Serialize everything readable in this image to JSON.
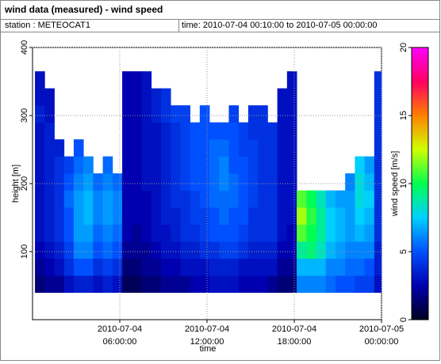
{
  "chart_data": {
    "type": "heatmap",
    "title": "wind data (measured) - wind speed",
    "station": "station : METEOCAT1",
    "time_range": "time: 2010-07-04 00:10:00 to 2010-07-05 00:00:00",
    "xlabel": "time",
    "ylabel": "height [m]",
    "colorbar_label": "wind speed [m/s]",
    "xlim": [
      0,
      24
    ],
    "xticks": [
      {
        "value": 6,
        "label": "2010-07-04 06:00:00"
      },
      {
        "value": 12,
        "label": "2010-07-04 12:00:00"
      },
      {
        "value": 18,
        "label": "2010-07-04 18:00:00"
      },
      {
        "value": 24,
        "label": "2010-07-05 00:00:00"
      }
    ],
    "ylim": [
      0,
      400
    ],
    "yticks": [
      100,
      200,
      300,
      400
    ],
    "clim": [
      0,
      20
    ],
    "cticks": [
      0,
      5,
      10,
      15,
      20
    ],
    "colorscale": [
      "#000020",
      "#0000b0",
      "#0050ff",
      "#00d0ff",
      "#00ff50",
      "#d0ff00",
      "#ff8000",
      "#ff0060",
      "#ff00ff"
    ],
    "grid": true,
    "xbins": [
      0.1667,
      0.8333,
      1.5,
      2.1667,
      2.8333,
      3.5,
      4.1667,
      4.8333,
      5.5,
      6.1667,
      6.8333,
      7.5,
      8.1667,
      8.8333,
      9.5,
      10.1667,
      10.8333,
      11.5,
      12.1667,
      12.8333,
      13.5,
      14.1667,
      14.8333,
      15.5,
      16.1667,
      16.8333,
      17.5,
      18.1667,
      18.8333,
      19.5,
      20.1667,
      20.8333,
      21.5,
      22.1667,
      22.8333,
      23.5,
      24
    ],
    "ybins": [
      40,
      65,
      90,
      115,
      140,
      165,
      190,
      215,
      240,
      265,
      290,
      315,
      340,
      365
    ],
    "z": [
      [
        1.5,
        2,
        2.5,
        3,
        3,
        3,
        3,
        3,
        3,
        3,
        3.5,
        3,
        3
      ],
      [
        2,
        2.5,
        3,
        3.5,
        3.5,
        3.5,
        3.5,
        3.5,
        3.5,
        3.5,
        3,
        3,
        null
      ],
      [
        2,
        3,
        3.5,
        4,
        4,
        4,
        4,
        4,
        3.5,
        null,
        null,
        null,
        null
      ],
      [
        3,
        4,
        4.5,
        5,
        5,
        5.5,
        5,
        4.5,
        null,
        null,
        null,
        null,
        null
      ],
      [
        3.5,
        5,
        6,
        6.5,
        6.5,
        6.5,
        6,
        5.5,
        5,
        null,
        null,
        null,
        null
      ],
      [
        3.5,
        5,
        6,
        6.5,
        7,
        7,
        6.5,
        6,
        null,
        null,
        null,
        null,
        null
      ],
      [
        3,
        4,
        5,
        5.5,
        6,
        6,
        5.5,
        null,
        null,
        null,
        null,
        null,
        null
      ],
      [
        3.5,
        4.5,
        5.5,
        6,
        6.5,
        6.5,
        6,
        5.5,
        null,
        null,
        null,
        null,
        null
      ],
      [
        3,
        4,
        5,
        5.5,
        6,
        6,
        5.5,
        null,
        null,
        null,
        null,
        null,
        null
      ],
      [
        1,
        1.5,
        2,
        2.5,
        2.5,
        2.5,
        2.5,
        2.5,
        2.5,
        2.5,
        2.5,
        2.5,
        2.5
      ],
      [
        1,
        1.5,
        2,
        2,
        2.5,
        2.5,
        2.5,
        2.5,
        2.5,
        2.5,
        2.5,
        2.5,
        2.5
      ],
      [
        1.5,
        2,
        2,
        2.5,
        2.5,
        2.5,
        3,
        3,
        3,
        3,
        3,
        3,
        3
      ],
      [
        1.5,
        2,
        2.5,
        3,
        3,
        3,
        3,
        3,
        3,
        3,
        3.5,
        3.5,
        null
      ],
      [
        2,
        2.5,
        3,
        3,
        3.5,
        3.5,
        3.5,
        3.5,
        3.5,
        3.5,
        4,
        4,
        null
      ],
      [
        2,
        2.5,
        3,
        3.5,
        3.5,
        4,
        4,
        4,
        4,
        4,
        4.5,
        null,
        null
      ],
      [
        2,
        3,
        3.5,
        4,
        4,
        4,
        4.5,
        4.5,
        4.5,
        4.5,
        4.5,
        null,
        null
      ],
      [
        2.5,
        3,
        3.5,
        4,
        4.5,
        4.5,
        5,
        5,
        5,
        5,
        null,
        null,
        null
      ],
      [
        2.5,
        3,
        4,
        4.5,
        4.5,
        5,
        5,
        5,
        5,
        5,
        5,
        null,
        null
      ],
      [
        3,
        3.5,
        4,
        5,
        5,
        5.5,
        5.5,
        5.5,
        5.5,
        5,
        null,
        null,
        null
      ],
      [
        3,
        3.5,
        4.5,
        5,
        5.5,
        5.5,
        6,
        6,
        5.5,
        5,
        null,
        null,
        null
      ],
      [
        3,
        3.5,
        4.5,
        5,
        5,
        5.5,
        5.5,
        5,
        5,
        5,
        4.5,
        null,
        null
      ],
      [
        2.5,
        3,
        4,
        4.5,
        5,
        5,
        5,
        5,
        4.5,
        4.5,
        null,
        null,
        null
      ],
      [
        2.5,
        3,
        3.5,
        4,
        4,
        4.5,
        4.5,
        4.5,
        4.5,
        4,
        4,
        null,
        null
      ],
      [
        2.5,
        3,
        3.5,
        4,
        4,
        4,
        4,
        4,
        4,
        4,
        4,
        null,
        null
      ],
      [
        2,
        3,
        3.5,
        4,
        4,
        4,
        4,
        4,
        4,
        4,
        null,
        null,
        null
      ],
      [
        1.5,
        2,
        2.5,
        3,
        3,
        3,
        3,
        3,
        3,
        3,
        3,
        3,
        null
      ],
      [
        1.5,
        2,
        2.5,
        2.5,
        3,
        3,
        3,
        3,
        3,
        3,
        3,
        3,
        3
      ],
      [
        6,
        7,
        9,
        11,
        12,
        11,
        null,
        null,
        null,
        null,
        null,
        null,
        null
      ],
      [
        6,
        7,
        9.5,
        10,
        10.5,
        10,
        null,
        null,
        null,
        null,
        null,
        null,
        null
      ],
      [
        6,
        7,
        8.5,
        9,
        9,
        8.5,
        null,
        null,
        null,
        null,
        null,
        null,
        null
      ],
      [
        5.5,
        6,
        7,
        7.5,
        7.5,
        7,
        null,
        null,
        null,
        null,
        null,
        null,
        null
      ],
      [
        5,
        6,
        6.5,
        7,
        7,
        6.5,
        null,
        null,
        null,
        null,
        null,
        null,
        null
      ],
      [
        5,
        5.5,
        6,
        6.5,
        6.5,
        6.5,
        6,
        null,
        null,
        null,
        null,
        null,
        null
      ],
      [
        4.5,
        5.5,
        6,
        7,
        7.5,
        8,
        8,
        7.5,
        null,
        null,
        null,
        null,
        null
      ],
      [
        4.5,
        5,
        6,
        6.5,
        7,
        7.5,
        7,
        6.5,
        null,
        null,
        null,
        null,
        null
      ],
      [
        3,
        3.5,
        3.5,
        4,
        4,
        4,
        4,
        4,
        4,
        4,
        4,
        4,
        4
      ]
    ]
  }
}
